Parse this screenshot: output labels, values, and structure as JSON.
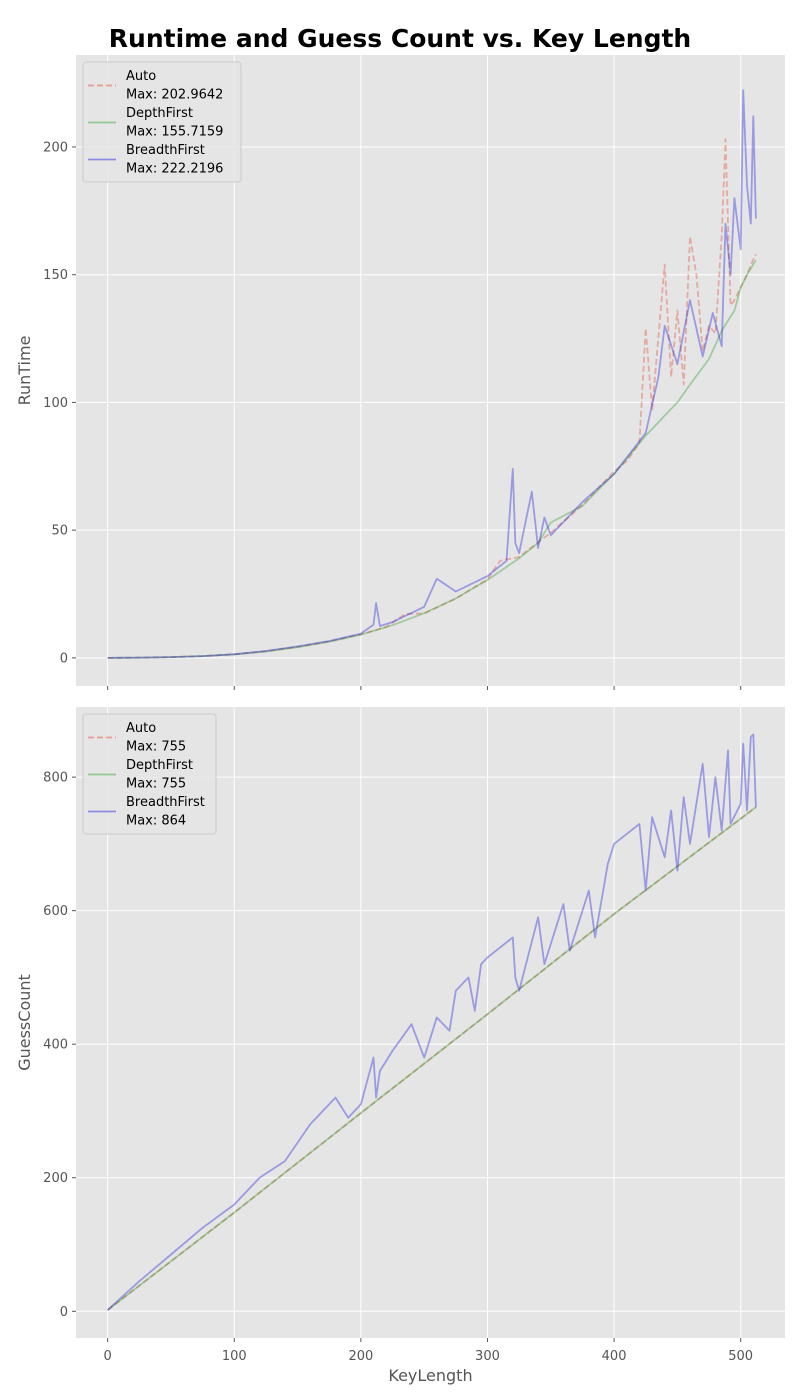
{
  "title": "Runtime and Guess Count vs. Key Length",
  "colors": {
    "background": "#e5e5e5",
    "grid": "#ffffff",
    "Auto": "#e24a33",
    "DepthFirst": "#2ca02c",
    "BreadthFirst": "#1f1fdd",
    "overlap": "#5a5a7a"
  },
  "chart_data": [
    {
      "type": "line",
      "xlabel": "",
      "ylabel": "RunTime",
      "xlim": [
        -25,
        535
      ],
      "ylim": [
        -11,
        236
      ],
      "xticks": [
        0,
        100,
        200,
        300,
        400,
        500
      ],
      "yticks": [
        0,
        50,
        100,
        150,
        200
      ],
      "show_xtick_labels": false,
      "grid": true,
      "legend_position": "upper-left",
      "series": [
        {
          "name": "Auto",
          "legend_label": "Auto\nMax: 202.9642",
          "style": "dashed",
          "x": [
            0,
            25,
            50,
            75,
            100,
            125,
            150,
            175,
            200,
            220,
            235,
            250,
            275,
            300,
            310,
            325,
            350,
            375,
            400,
            410,
            420,
            425,
            430,
            440,
            445,
            450,
            455,
            460,
            465,
            470,
            475,
            480,
            485,
            488,
            490,
            492,
            495,
            500,
            505,
            510,
            512
          ],
          "y": [
            0,
            0.1,
            0.3,
            0.7,
            1.4,
            2.6,
            4.3,
            6.4,
            9.2,
            12.1,
            17.2,
            17.4,
            23.2,
            30.8,
            38,
            39.5,
            49,
            59.8,
            73,
            77,
            84,
            129,
            97,
            154,
            110,
            136,
            107,
            165,
            150,
            120,
            130,
            127,
            165,
            203,
            170,
            138,
            140,
            145,
            150,
            156,
            158
          ]
        },
        {
          "name": "DepthFirst",
          "legend_label": "DepthFirst\nMax: 155.7159",
          "style": "solid",
          "x": [
            0,
            25,
            50,
            75,
            100,
            125,
            150,
            175,
            200,
            225,
            250,
            275,
            300,
            325,
            340,
            350,
            375,
            400,
            425,
            450,
            460,
            475,
            485,
            495,
            500,
            505,
            512
          ],
          "y": [
            0,
            0.1,
            0.3,
            0.7,
            1.4,
            2.5,
            4.2,
            6.3,
            9.1,
            12.8,
            17.5,
            23.3,
            30.5,
            39,
            45,
            53,
            59.5,
            72,
            87,
            100,
            107,
            117,
            128,
            136,
            145,
            150,
            155.7
          ]
        },
        {
          "name": "BreadthFirst",
          "legend_label": "BreadthFirst\nMax: 222.2196",
          "style": "solid",
          "x": [
            0,
            25,
            50,
            75,
            100,
            125,
            150,
            175,
            200,
            210,
            212,
            215,
            225,
            250,
            260,
            275,
            300,
            315,
            320,
            322,
            325,
            335,
            340,
            345,
            350,
            375,
            400,
            425,
            435,
            440,
            450,
            460,
            470,
            478,
            485,
            488,
            492,
            495,
            500,
            502,
            505,
            508,
            510,
            512
          ],
          "y": [
            0,
            0.1,
            0.3,
            0.7,
            1.4,
            2.7,
            4.5,
            6.6,
            9.5,
            13,
            21.5,
            12.5,
            14,
            20,
            31,
            26,
            32,
            38,
            74,
            45,
            41,
            65,
            43,
            55,
            48,
            61,
            72,
            88,
            110,
            130,
            115,
            140,
            118,
            135,
            122,
            170,
            150,
            180,
            160,
            222.2,
            185,
            170,
            212,
            172
          ]
        }
      ]
    },
    {
      "type": "line",
      "xlabel": "KeyLength",
      "ylabel": "GuessCount",
      "xlim": [
        -25,
        535
      ],
      "ylim": [
        -40,
        905
      ],
      "xticks": [
        0,
        100,
        200,
        300,
        400,
        500
      ],
      "yticks": [
        0,
        200,
        400,
        600,
        800
      ],
      "show_xtick_labels": true,
      "grid": true,
      "legend_position": "upper-left",
      "series": [
        {
          "name": "Auto",
          "legend_label": "Auto\nMax: 755",
          "style": "dashed",
          "x": [
            0,
            100,
            200,
            300,
            400,
            512
          ],
          "y": [
            2,
            148,
            297,
            445,
            595,
            755
          ]
        },
        {
          "name": "DepthFirst",
          "legend_label": "DepthFirst\nMax: 755",
          "style": "solid",
          "x": [
            0,
            100,
            200,
            300,
            400,
            512
          ],
          "y": [
            2,
            148,
            297,
            445,
            595,
            755
          ]
        },
        {
          "name": "BreadthFirst",
          "legend_label": "BreadthFirst\nMax: 864",
          "style": "solid",
          "x": [
            0,
            25,
            50,
            75,
            100,
            120,
            140,
            160,
            180,
            190,
            200,
            210,
            212,
            215,
            225,
            240,
            250,
            260,
            270,
            275,
            285,
            290,
            295,
            300,
            320,
            322,
            325,
            340,
            345,
            360,
            365,
            380,
            385,
            395,
            400,
            420,
            425,
            430,
            440,
            445,
            450,
            455,
            460,
            470,
            475,
            480,
            485,
            490,
            492,
            500,
            502,
            505,
            508,
            510,
            512
          ],
          "y": [
            2,
            45,
            85,
            125,
            160,
            200,
            225,
            280,
            320,
            290,
            310,
            380,
            320,
            360,
            390,
            430,
            380,
            440,
            420,
            480,
            500,
            450,
            520,
            530,
            560,
            500,
            480,
            590,
            520,
            610,
            540,
            630,
            560,
            670,
            700,
            730,
            630,
            740,
            680,
            750,
            660,
            770,
            700,
            820,
            710,
            800,
            720,
            840,
            730,
            760,
            850,
            750,
            860,
            864,
            755
          ]
        }
      ]
    }
  ]
}
